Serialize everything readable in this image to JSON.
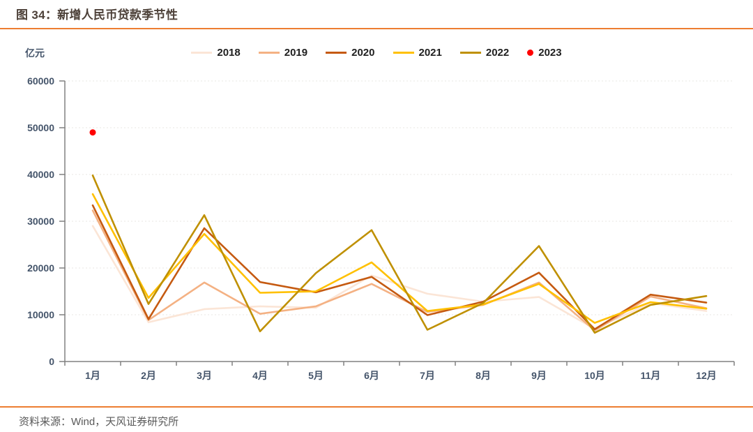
{
  "header": {
    "title": "图 34：新增人民币贷款季节性"
  },
  "footer": {
    "source": "资料来源：Wind，天风证券研究所"
  },
  "colors": {
    "accent_rule": "#ED7D31",
    "title_text": "#4D4139",
    "axis_text": "#44546A",
    "axis_line": "#808080",
    "gridline": "#E9E7E3",
    "legend_text": "#1F1F1F",
    "source_text": "#595959",
    "background": "#FFFFFF"
  },
  "chart_data": {
    "type": "line",
    "title": "新增人民币贷款季节性",
    "unit_label": "亿元",
    "xlabel": "",
    "ylabel": "亿元",
    "ylim": [
      0,
      60000
    ],
    "y_ticks": [
      0,
      10000,
      20000,
      30000,
      40000,
      50000,
      60000
    ],
    "categories": [
      "1月",
      "2月",
      "3月",
      "4月",
      "5月",
      "6月",
      "7月",
      "8月",
      "9月",
      "10月",
      "11月",
      "12月"
    ],
    "grid": "horizontal-dotted",
    "legend_position": "top",
    "series": [
      {
        "name": "2018",
        "color": "#FBE5D6",
        "marker": "line",
        "values": [
          29000,
          8393,
          11200,
          11800,
          11500,
          18400,
          14500,
          12800,
          13800,
          6970,
          12500,
          10800
        ]
      },
      {
        "name": "2019",
        "color": "#F4B183",
        "marker": "line",
        "values": [
          32300,
          8858,
          16900,
          10200,
          11800,
          16600,
          10600,
          12100,
          16900,
          6613,
          13900,
          11400
        ]
      },
      {
        "name": "2020",
        "color": "#C55A11",
        "marker": "line",
        "values": [
          33400,
          9057,
          28500,
          17000,
          14800,
          18100,
          9927,
          12800,
          19000,
          6898,
          14300,
          12600
        ]
      },
      {
        "name": "2021",
        "color": "#FFC000",
        "marker": "line",
        "values": [
          35800,
          13600,
          27300,
          14700,
          15000,
          21200,
          10800,
          12200,
          16600,
          8262,
          12700,
          11300
        ]
      },
      {
        "name": "2022",
        "color": "#BF9000",
        "marker": "line",
        "values": [
          39800,
          12300,
          31300,
          6454,
          18900,
          28100,
          6790,
          12500,
          24700,
          6152,
          12100,
          14000
        ]
      },
      {
        "name": "2023",
        "color": "#FF0000",
        "marker": "point",
        "values": [
          49000
        ]
      }
    ]
  }
}
